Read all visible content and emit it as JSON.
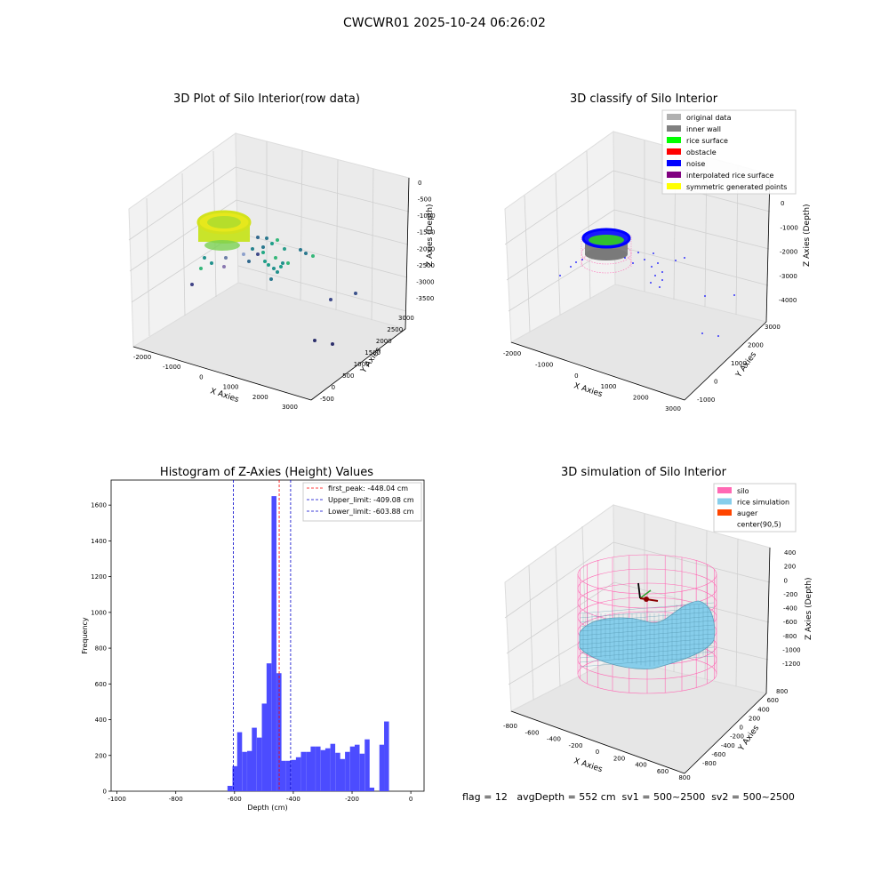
{
  "suptitle": "CWCWR01 2025-10-24 06:26:02",
  "footer_text": "flag = 12   avgDepth = 552 cm  sv1 = 500~2500  sv2 = 500~2500",
  "colors": {
    "hist_bar": "#4c4cff",
    "peak_line": "#ff0000",
    "limit_line": "#0000cc",
    "original": "#b0b0b0",
    "inner_wall": "#808080",
    "rice_surface": "#00ff00",
    "obstacle": "#ff0000",
    "noise": "#0000ff",
    "interp": "#800080",
    "symmetric": "#ffff00",
    "silo": "#ff69b4",
    "rice_sim": "#87ceeb",
    "auger": "#ff4500"
  },
  "chart_data": [
    {
      "type": "scatter",
      "title": "3D Plot of Silo Interior(row data)",
      "xlabel": "X Axies",
      "ylabel": "Y Axies",
      "zlabel": "Z Axies (Depth)",
      "x_ticks": [
        "-2000",
        "-1000",
        "0",
        "1000",
        "2000",
        "3000"
      ],
      "y_ticks": [
        "-500",
        "0",
        "500",
        "1000",
        "1500",
        "2000",
        "2500",
        "3000"
      ],
      "z_ticks": [
        "0",
        "-500",
        "-1000",
        "-1500",
        "-2000",
        "-2500",
        "-3000",
        "-3500"
      ],
      "xlim": [
        -2200,
        3200
      ],
      "ylim": [
        -600,
        3200
      ],
      "zlim": [
        -3600,
        100
      ]
    },
    {
      "type": "scatter",
      "title": "3D classify of Silo Interior",
      "xlabel": "X Axies",
      "ylabel": "Y Axies",
      "zlabel": "Z Axies (Depth)",
      "x_ticks": [
        "-2000",
        "-1000",
        "0",
        "1000",
        "2000",
        "3000"
      ],
      "y_ticks": [
        "-1000",
        "0",
        "1000",
        "2000",
        "3000"
      ],
      "z_ticks": [
        "0",
        "-1000",
        "-2000",
        "-3000",
        "-4000"
      ],
      "legend_position": "top-right",
      "legend": [
        {
          "label": "original data",
          "color": "#b0b0b0"
        },
        {
          "label": "inner wall",
          "color": "#808080"
        },
        {
          "label": "rice surface",
          "color": "#00ff00"
        },
        {
          "label": "obstacle",
          "color": "#ff0000"
        },
        {
          "label": "noise",
          "color": "#0000ff"
        },
        {
          "label": "interpolated rice surface",
          "color": "#800080"
        },
        {
          "label": "symmetric generated points",
          "color": "#ffff00"
        }
      ]
    },
    {
      "type": "bar",
      "title": "Histogram of Z-Axies (Height) Values",
      "xlabel": "Depth (cm)",
      "ylabel": "Frequency",
      "xlim": [
        -1020,
        45
      ],
      "ylim": [
        0,
        1740
      ],
      "x_ticks": [
        -1000,
        -800,
        -600,
        -400,
        -200,
        0
      ],
      "y_ticks": [
        0,
        200,
        400,
        600,
        800,
        1000,
        1200,
        1400,
        1600
      ],
      "bin_width": 16.67,
      "bins": [
        {
          "x": -624,
          "v": 30
        },
        {
          "x": -607,
          "v": 140
        },
        {
          "x": -591,
          "v": 330
        },
        {
          "x": -574,
          "v": 220
        },
        {
          "x": -557,
          "v": 225
        },
        {
          "x": -541,
          "v": 355
        },
        {
          "x": -524,
          "v": 300
        },
        {
          "x": -507,
          "v": 490
        },
        {
          "x": -491,
          "v": 715
        },
        {
          "x": -474,
          "v": 1650
        },
        {
          "x": -457,
          "v": 660
        },
        {
          "x": -441,
          "v": 170
        },
        {
          "x": -424,
          "v": 170
        },
        {
          "x": -407,
          "v": 175
        },
        {
          "x": -391,
          "v": 190
        },
        {
          "x": -374,
          "v": 220
        },
        {
          "x": -357,
          "v": 220
        },
        {
          "x": -341,
          "v": 250
        },
        {
          "x": -324,
          "v": 250
        },
        {
          "x": -307,
          "v": 230
        },
        {
          "x": -291,
          "v": 240
        },
        {
          "x": -274,
          "v": 265
        },
        {
          "x": -257,
          "v": 215
        },
        {
          "x": -241,
          "v": 180
        },
        {
          "x": -224,
          "v": 220
        },
        {
          "x": -207,
          "v": 250
        },
        {
          "x": -191,
          "v": 260
        },
        {
          "x": -174,
          "v": 210
        },
        {
          "x": -157,
          "v": 290
        },
        {
          "x": -141,
          "v": 20
        },
        {
          "x": -124,
          "v": 0
        },
        {
          "x": -107,
          "v": 260
        },
        {
          "x": -91,
          "v": 390
        }
      ],
      "vlines": [
        {
          "label": "first_peak: -448.04 cm",
          "x": -448.04,
          "color": "#ff0000"
        },
        {
          "label": "Upper_limit: -409.08 cm",
          "x": -409.08,
          "color": "#0000cc"
        },
        {
          "label": "Lower_limit: -603.88 cm",
          "x": -603.88,
          "color": "#0000cc"
        }
      ]
    },
    {
      "type": "area",
      "title": "3D simulation of Silo Interior",
      "xlabel": "X Axies",
      "ylabel": "Y Axies",
      "zlabel": "Z Axies (Depth)",
      "x_ticks": [
        "-800",
        "-600",
        "-400",
        "-200",
        "0",
        "200",
        "400",
        "600",
        "800"
      ],
      "y_ticks": [
        "-800",
        "-600",
        "-400",
        "-200",
        "0",
        "200",
        "400",
        "600",
        "800"
      ],
      "z_ticks": [
        "400",
        "200",
        "0",
        "-200",
        "-400",
        "-600",
        "-800",
        "-1000",
        "-1200"
      ],
      "legend": [
        {
          "label": "silo",
          "color": "#ff69b4"
        },
        {
          "label": "rice simulation",
          "color": "#87ceeb"
        },
        {
          "label": "auger",
          "color": "#ff4500"
        },
        {
          "label": "center(90,5)",
          "color": "#ffffff"
        }
      ]
    }
  ]
}
